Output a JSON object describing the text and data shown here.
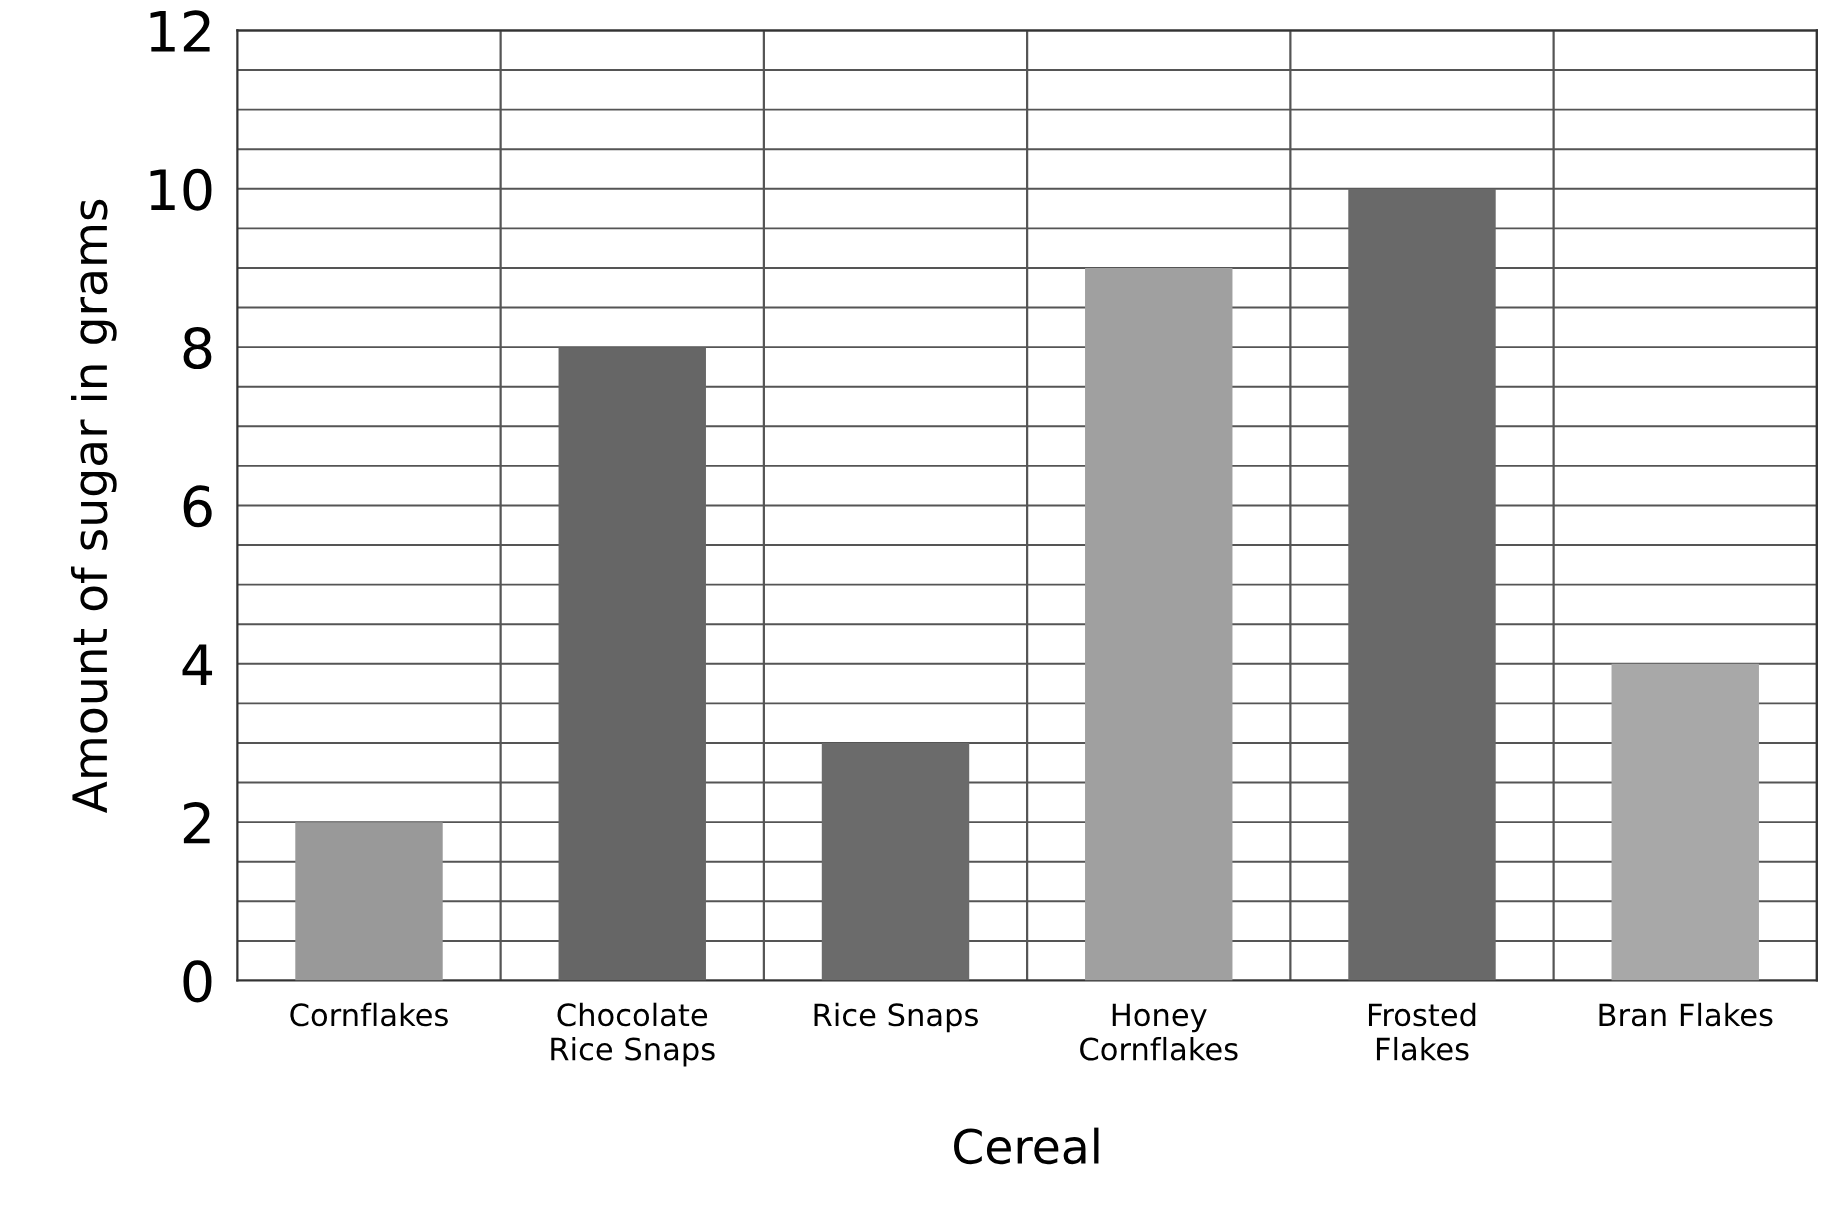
{
  "chart_data": {
    "type": "bar",
    "xlabel": "Cereal",
    "ylabel": "Amount of sugar in grams",
    "categories": [
      "Cornflakes",
      "Chocolate\nRice Snaps",
      "Rice Snaps",
      "Honey\nCornflakes",
      "Frosted\nFlakes",
      "Bran Flakes"
    ],
    "values": [
      2,
      8,
      3,
      9,
      10,
      4
    ],
    "colors": [
      "#999999",
      "#666666",
      "#6b6b6b",
      "#a0a0a0",
      "#696969",
      "#a8a8a8"
    ],
    "ylim": [
      0,
      12
    ],
    "yticks": [
      0,
      2,
      4,
      6,
      8,
      10,
      12
    ],
    "grid": true
  }
}
